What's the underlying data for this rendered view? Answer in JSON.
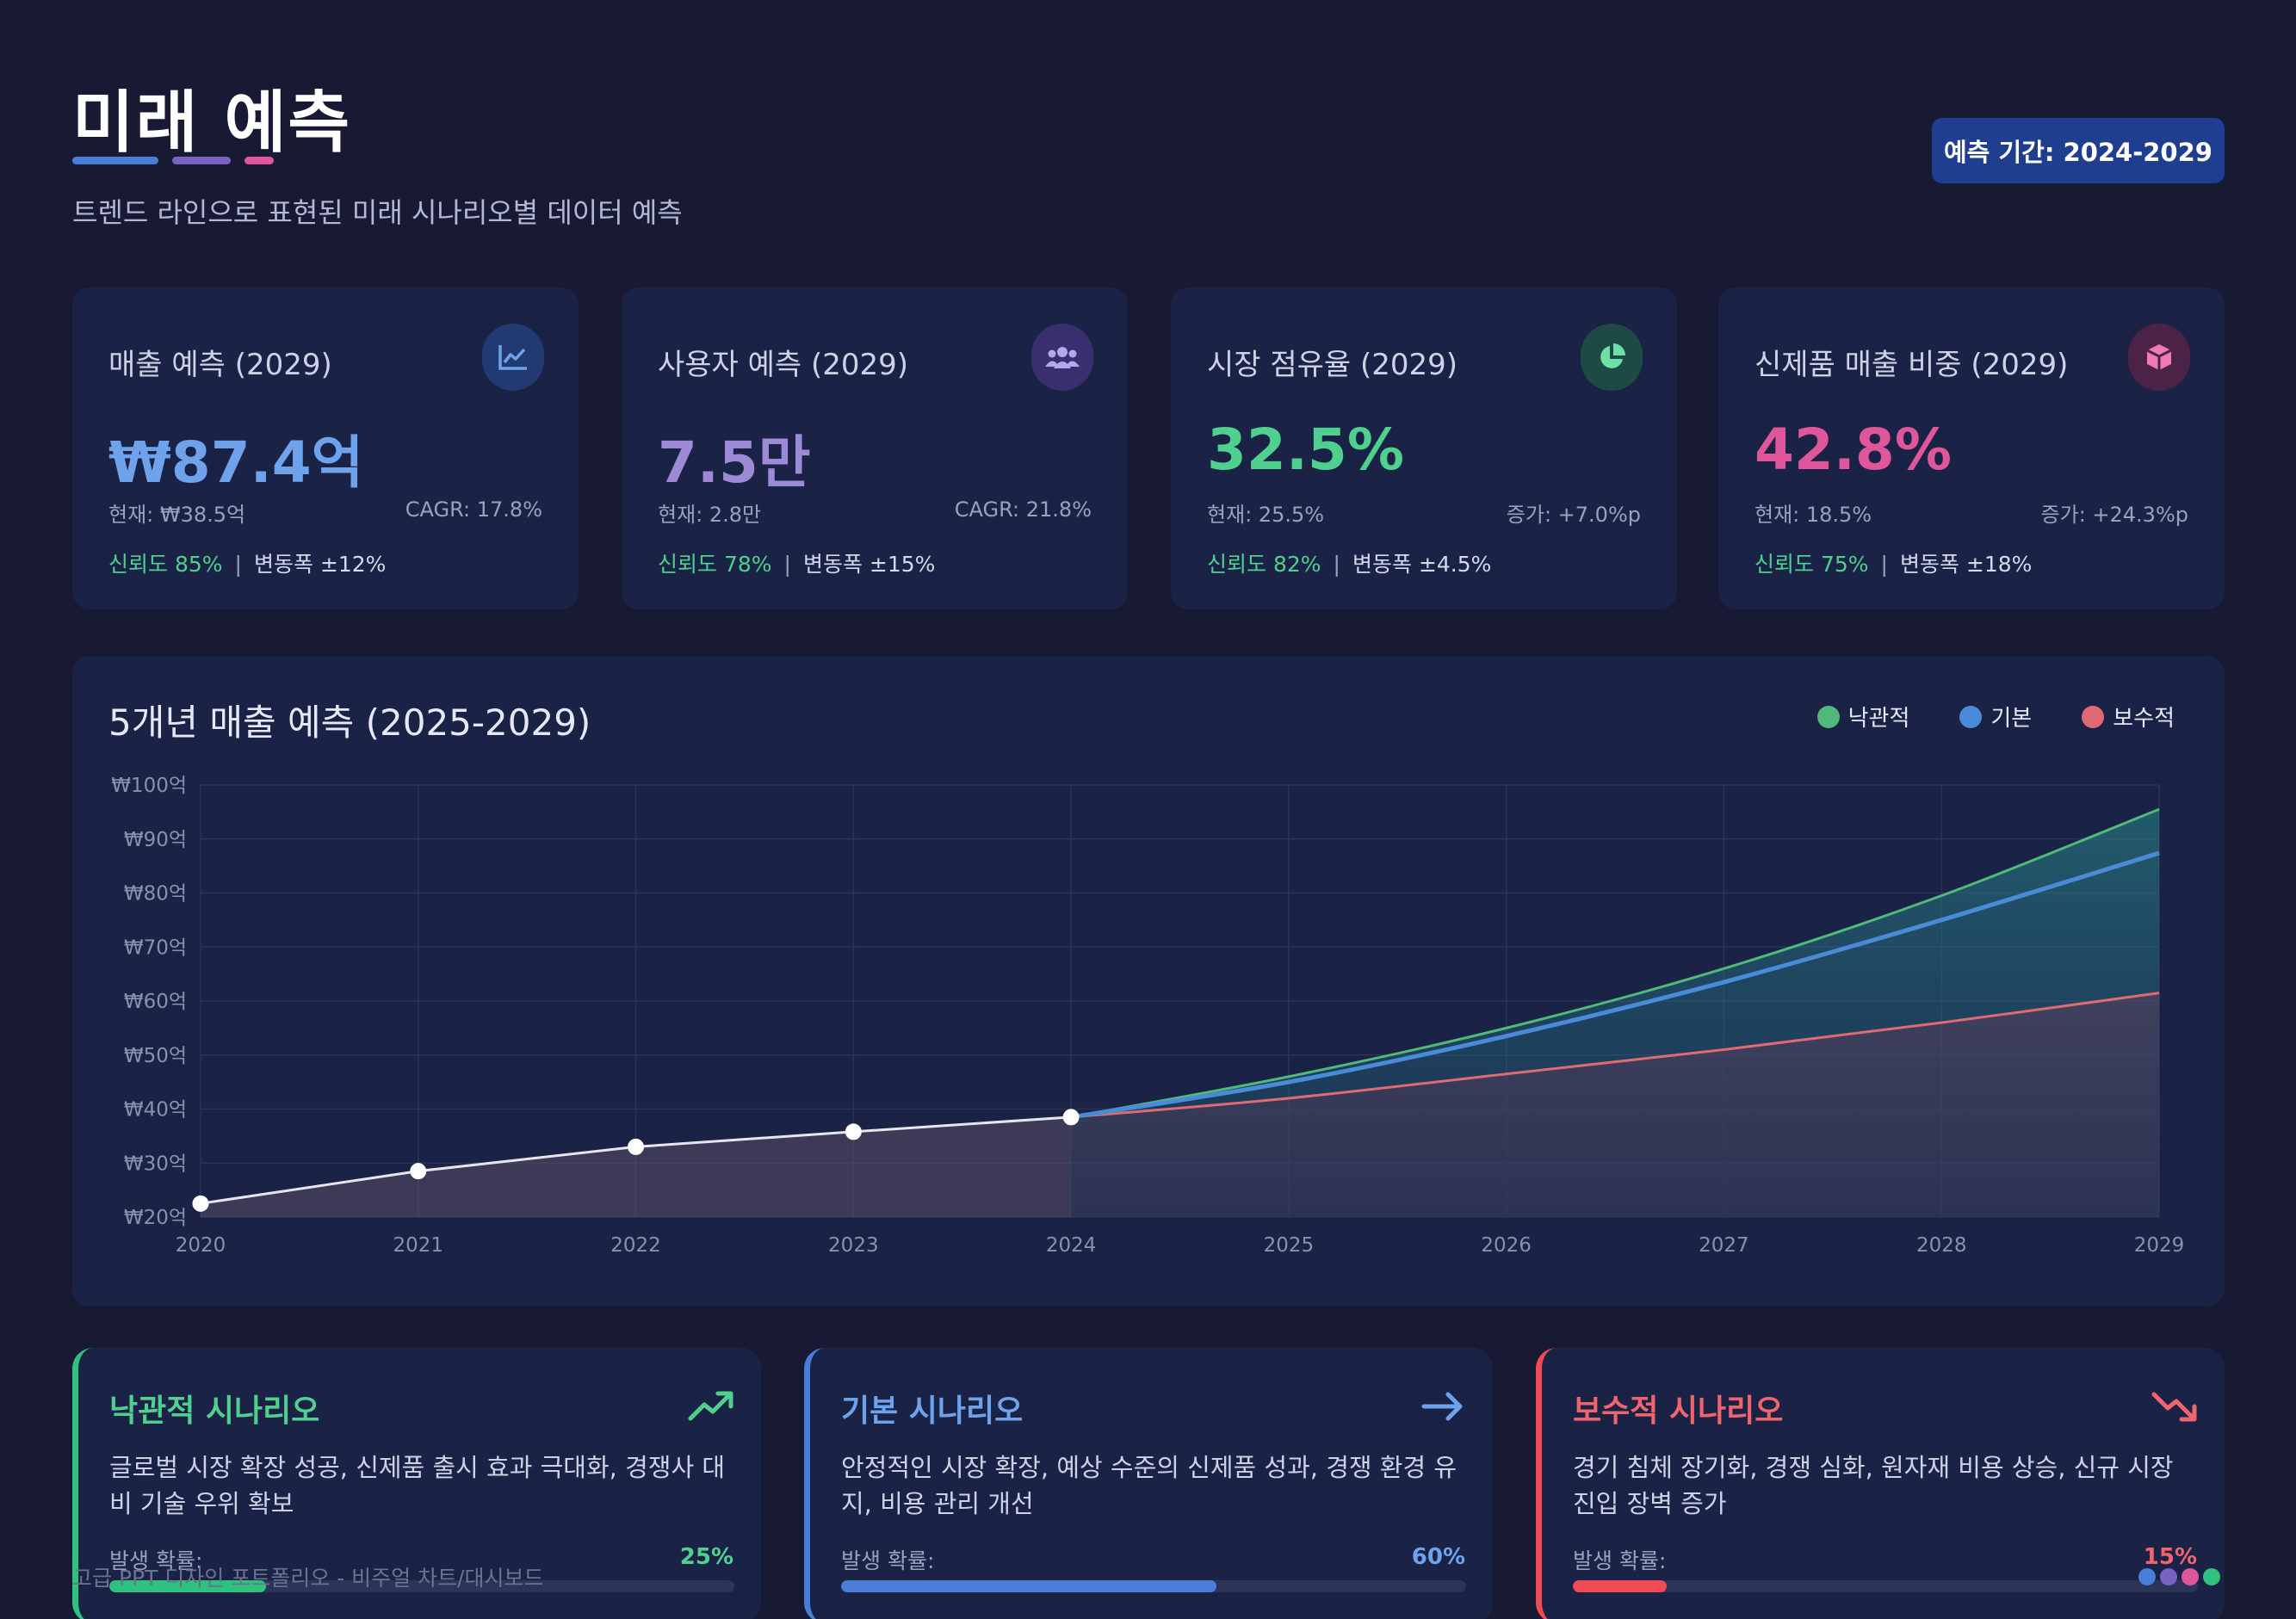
{
  "header": {
    "title": "미래 예측",
    "subtitle": "트렌드 라인으로 표현된 미래 시나리오별 데이터 예측",
    "period_badge": "예측 기간: 2024-2029",
    "bar_colors": [
      "#4a7dd8",
      "#7a62c0",
      "#e0569a"
    ]
  },
  "kpis": [
    {
      "label": "매출 예측 (2029)",
      "icon": "line-chart-icon",
      "value": "₩87.4억",
      "color": "#6ea3ec",
      "icon_bg": "#213a72",
      "current": "현재: ₩38.5억",
      "rate": "CAGR: 17.8%",
      "confidence": "신뢰도 85%",
      "range": "변동폭 ±12%"
    },
    {
      "label": "사용자 예측 (2029)",
      "icon": "users-icon",
      "value": "7.5만",
      "color": "#9d8ad6",
      "icon_bg": "#3a2f6e",
      "current": "현재: 2.8만",
      "rate": "CAGR: 21.8%",
      "confidence": "신뢰도 78%",
      "range": "변동폭 ±15%"
    },
    {
      "label": "시장 점유율 (2029)",
      "icon": "pie-chart-icon",
      "value": "32.5%",
      "color": "#4fd08f",
      "icon_bg": "#1d4a45",
      "current": "현재: 25.5%",
      "rate": "증가: +7.0%p",
      "confidence": "신뢰도 82%",
      "range": "변동폭 ±4.5%"
    },
    {
      "label": "신제품 매출 비중 (2029)",
      "icon": "cube-icon",
      "value": "42.8%",
      "color": "#e0569a",
      "icon_bg": "#4a2346",
      "current": "현재: 18.5%",
      "rate": "증가: +24.3%p",
      "confidence": "신뢰도 75%",
      "range": "변동폭 ±18%"
    }
  ],
  "chart_data": {
    "type": "line",
    "title": "5개년 매출 예측 (2025-2029)",
    "x": [
      2020,
      2021,
      2022,
      2023,
      2024,
      2025,
      2026,
      2027,
      2028,
      2029
    ],
    "y_ticks": [
      "₩20억",
      "₩30억",
      "₩40억",
      "₩50억",
      "₩60억",
      "₩70억",
      "₩80억",
      "₩90억",
      "₩100억"
    ],
    "ylim": [
      20,
      100
    ],
    "legend_placement": "top-right",
    "historical": {
      "x": [
        2020,
        2021,
        2022,
        2023,
        2024
      ],
      "values": [
        22.5,
        28.5,
        33,
        35.8,
        38.5
      ],
      "color": "#e6e6ee"
    },
    "series": [
      {
        "name": "낙관적",
        "color": "#4fba7a",
        "x": [
          2024,
          2025,
          2026,
          2027,
          2028,
          2029
        ],
        "values": [
          38.5,
          46,
          55,
          66,
          79.5,
          95.5
        ]
      },
      {
        "name": "기본",
        "color": "#4a8bd8",
        "x": [
          2024,
          2025,
          2026,
          2027,
          2028,
          2029
        ],
        "values": [
          38.5,
          45,
          53.5,
          63.5,
          75,
          87.4
        ]
      },
      {
        "name": "보수적",
        "color": "#e06a72",
        "x": [
          2024,
          2025,
          2026,
          2027,
          2028,
          2029
        ],
        "values": [
          38.5,
          42,
          46.5,
          51,
          56,
          61.5
        ]
      }
    ],
    "grid": true
  },
  "scenarios": [
    {
      "title": "낙관적 시나리오",
      "icon": "trend-up-icon",
      "color": "#4fd08f",
      "desc": "글로벌 시장 확장 성공, 신제품 출시 효과 극대화, 경쟁사 대비 기술 우위 확보",
      "prob_label": "발생 확률:",
      "prob": "25%",
      "prob_value": 0.25,
      "bar_color": "#2ec27e"
    },
    {
      "title": "기본 시나리오",
      "icon": "arrow-right-icon",
      "color": "#6ea3ec",
      "desc": "안정적인 시장 확장, 예상 수준의 신제품 성과, 경쟁 환경 유지, 비용 관리 개선",
      "prob_label": "발생 확률:",
      "prob": "60%",
      "prob_value": 0.6,
      "bar_color": "#4a7dd8"
    },
    {
      "title": "보수적 시나리오",
      "icon": "trend-down-icon",
      "color": "#f0656d",
      "desc": "경기 침체 장기화, 경쟁 심화, 원자재 비용 상승, 신규 시장 진입 장벽 증가",
      "prob_label": "발생 확률:",
      "prob": "15%",
      "prob_value": 0.15,
      "bar_color": "#ef4a55"
    }
  ],
  "footer": {
    "text": "고급 PPT 디자인 포트폴리오 - 비주얼 차트/대시보드",
    "dot_colors": [
      "#4a7dd8",
      "#7a62c0",
      "#e0569a",
      "#2ec27e"
    ]
  }
}
